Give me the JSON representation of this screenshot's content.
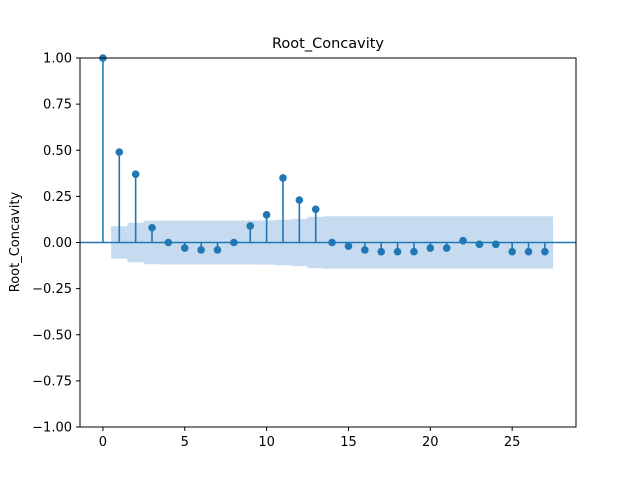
{
  "chart_data": {
    "type": "scatter",
    "kind": "autocorrelation-stem",
    "title": "Root_Concavity",
    "xlabel": "",
    "ylabel": "Root_Concavity",
    "xlim": [
      -1.4,
      28.9
    ],
    "ylim": [
      -1.0,
      1.0
    ],
    "xticks": [
      0,
      5,
      10,
      15,
      20,
      25
    ],
    "yticks": [
      -1.0,
      -0.75,
      -0.5,
      -0.25,
      0.0,
      0.25,
      0.5,
      0.75,
      1.0
    ],
    "xtick_labels": [
      "0",
      "5",
      "10",
      "15",
      "20",
      "25"
    ],
    "ytick_labels": [
      "−1.00",
      "−0.75",
      "−0.50",
      "−0.25",
      "0.00",
      "0.25",
      "0.50",
      "0.75",
      "1.00"
    ],
    "grid": false,
    "legend": "none",
    "color": "#1f77b4",
    "band_color": "#c6dbef",
    "lags": [
      0,
      1,
      2,
      3,
      4,
      5,
      6,
      7,
      8,
      9,
      10,
      11,
      12,
      13,
      14,
      15,
      16,
      17,
      18,
      19,
      20,
      21,
      22,
      23,
      24,
      25,
      26,
      27
    ],
    "values": [
      1.0,
      0.49,
      0.37,
      0.08,
      0.0,
      -0.03,
      -0.04,
      -0.04,
      0.0,
      0.09,
      0.15,
      0.35,
      0.23,
      0.18,
      0.0,
      -0.02,
      -0.04,
      -0.05,
      -0.05,
      -0.05,
      -0.03,
      -0.03,
      0.01,
      -0.01,
      -0.01,
      -0.05,
      -0.05,
      -0.05
    ],
    "confidence_band": {
      "x": [
        1,
        2,
        3,
        4,
        5,
        6,
        7,
        8,
        9,
        10,
        11,
        12,
        13,
        14,
        15,
        16,
        17,
        18,
        19,
        20,
        21,
        22,
        23,
        24,
        25,
        26,
        27
      ],
      "upper": [
        0.088,
        0.107,
        0.118,
        0.119,
        0.119,
        0.119,
        0.119,
        0.119,
        0.119,
        0.12,
        0.123,
        0.128,
        0.14,
        0.142,
        0.142,
        0.142,
        0.142,
        0.142,
        0.142,
        0.142,
        0.142,
        0.142,
        0.142,
        0.142,
        0.142,
        0.142,
        0.142
      ]
    }
  }
}
